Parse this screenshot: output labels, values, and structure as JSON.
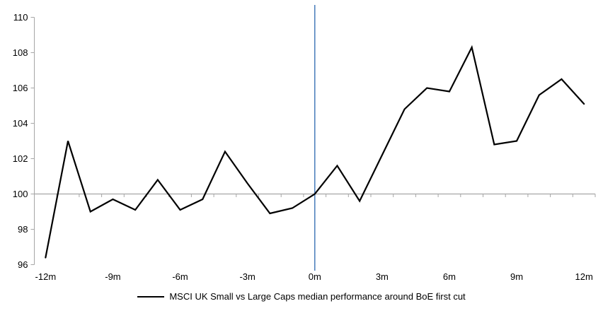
{
  "chart_data": {
    "type": "line",
    "title": "",
    "xlabel": "",
    "ylabel": "",
    "legend": "MSCI UK Small vs Large Caps median performance around BoE first cut",
    "legend_position": "bottom-center",
    "grid": "baseline-only",
    "baseline_value": 100,
    "event_line_x": 0,
    "xlim": [
      -12.5,
      12.5
    ],
    "ylim": [
      96,
      110
    ],
    "y_ticks": [
      96,
      98,
      100,
      102,
      104,
      106,
      108,
      110
    ],
    "x_tick_labels": [
      "-12m",
      "-9m",
      "-6m",
      "-3m",
      "0m",
      "3m",
      "6m",
      "9m",
      "12m"
    ],
    "x_tick_label_months": [
      -12,
      -9,
      -6,
      -3,
      0,
      3,
      6,
      9,
      12
    ],
    "x": [
      -12,
      -11,
      -10,
      -9,
      -8,
      -7,
      -6,
      -5,
      -4,
      -3,
      -2,
      -1,
      0,
      1,
      2,
      3,
      4,
      5,
      6,
      7,
      8,
      9,
      10,
      11,
      12
    ],
    "series": [
      {
        "name": "MSCI UK Small vs Large Caps median performance around BoE first cut",
        "values": [
          96.4,
          103.0,
          99.0,
          99.7,
          99.1,
          100.8,
          99.1,
          99.7,
          102.4,
          100.6,
          98.9,
          99.2,
          100.0,
          101.6,
          99.6,
          102.2,
          104.8,
          106.0,
          105.8,
          108.3,
          102.8,
          103.0,
          105.6,
          106.5,
          105.1
        ]
      }
    ],
    "colors": {
      "series_line": "#000000",
      "event_line": "#4F81BD",
      "axis_line": "#A6A6A6",
      "text": "#000000",
      "background": "#FFFFFF"
    }
  }
}
